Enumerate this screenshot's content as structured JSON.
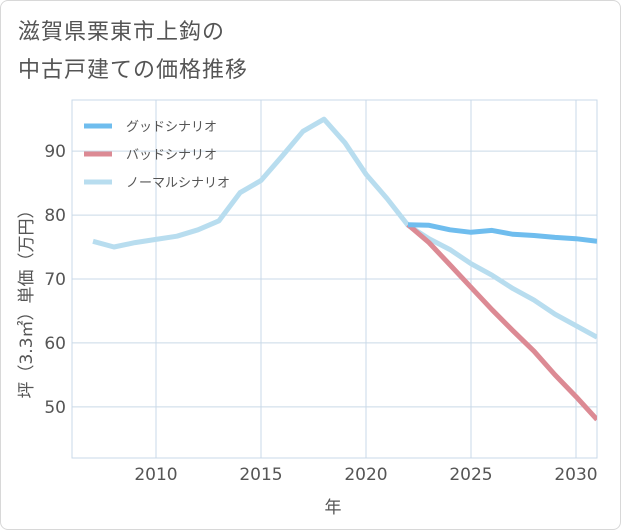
{
  "title_line1": "滋賀県栗東市上鈎の",
  "title_line2": "中古戸建ての価格推移",
  "colors": {
    "good": "#6fbdee",
    "bad": "#dc8a94",
    "normal": "#b8ddef",
    "grid": "#c9d9e8"
  },
  "chart_data": {
    "type": "line",
    "title": "滋賀県栗東市上鈎の中古戸建ての価格推移",
    "xlabel": "年",
    "ylabel": "坪（3.3㎡）単価（万円）",
    "xlim": [
      2006,
      2031
    ],
    "ylim": [
      42,
      98
    ],
    "x_ticks": [
      2010,
      2015,
      2020,
      2025,
      2030
    ],
    "y_ticks": [
      50,
      60,
      70,
      80,
      90
    ],
    "legend_position": "top-left",
    "series": [
      {
        "name": "グッドシナリオ",
        "key": "good",
        "x": [
          2022,
          2023,
          2024,
          2025,
          2026,
          2027,
          2028,
          2029,
          2030,
          2031
        ],
        "values": [
          78.5,
          78.4,
          77.7,
          77.3,
          77.6,
          77.0,
          76.8,
          76.5,
          76.3,
          75.9
        ]
      },
      {
        "name": "バッドシナリオ",
        "key": "bad",
        "x": [
          2022,
          2023,
          2024,
          2025,
          2026,
          2027,
          2028,
          2029,
          2030,
          2031
        ],
        "values": [
          78.5,
          75.7,
          72.2,
          68.7,
          65.2,
          61.9,
          58.7,
          55.0,
          51.6,
          48.0
        ]
      },
      {
        "name": "ノーマルシナリオ",
        "key": "normal",
        "x": [
          2007,
          2008,
          2009,
          2010,
          2011,
          2012,
          2013,
          2014,
          2015,
          2016,
          2017,
          2018,
          2019,
          2020,
          2021,
          2022,
          2023,
          2024,
          2025,
          2026,
          2027,
          2028,
          2029,
          2030,
          2031
        ],
        "values": [
          75.9,
          75.0,
          75.7,
          76.2,
          76.7,
          77.7,
          79.1,
          83.5,
          85.4,
          89.2,
          93.1,
          95.0,
          91.3,
          86.4,
          82.6,
          78.4,
          76.3,
          74.6,
          72.4,
          70.6,
          68.5,
          66.7,
          64.5,
          62.7,
          60.9
        ]
      }
    ]
  }
}
